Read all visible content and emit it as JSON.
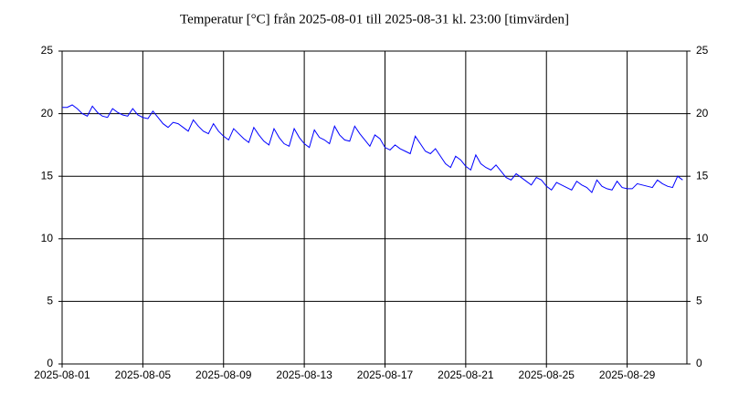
{
  "chart_data": {
    "type": "line",
    "title": "Temperatur [°C] från 2025-08-01 till 2025-08-31 kl. 23:00 [timvärden]",
    "x": [
      0,
      0.25,
      0.5,
      0.75,
      1,
      1.25,
      1.5,
      1.75,
      2,
      2.25,
      2.5,
      2.75,
      3,
      3.25,
      3.5,
      3.75,
      4,
      4.25,
      4.5,
      4.75,
      5,
      5.25,
      5.5,
      5.75,
      6,
      6.25,
      6.5,
      6.75,
      7,
      7.25,
      7.5,
      7.75,
      8,
      8.25,
      8.5,
      8.75,
      9,
      9.25,
      9.5,
      9.75,
      10,
      10.25,
      10.5,
      10.75,
      11,
      11.25,
      11.5,
      11.75,
      12,
      12.25,
      12.5,
      12.75,
      13,
      13.25,
      13.5,
      13.75,
      14,
      14.25,
      14.5,
      14.75,
      15,
      15.25,
      15.5,
      15.75,
      16,
      16.25,
      16.5,
      16.75,
      17,
      17.25,
      17.5,
      17.75,
      18,
      18.25,
      18.5,
      18.75,
      19,
      19.25,
      19.5,
      19.75,
      20,
      20.25,
      20.5,
      20.75,
      21,
      21.25,
      21.5,
      21.75,
      22,
      22.25,
      22.5,
      22.75,
      23,
      23.25,
      23.5,
      23.75,
      24,
      24.25,
      24.5,
      24.75,
      25,
      25.25,
      25.5,
      25.75,
      26,
      26.25,
      26.5,
      26.75,
      27,
      27.25,
      27.5,
      27.75,
      28,
      28.25,
      28.5,
      28.75,
      29,
      29.25,
      29.5,
      29.75,
      30,
      30.25,
      30.5,
      30.75
    ],
    "series": [
      {
        "name": "Temperatur",
        "color": "#0000ff",
        "values": [
          20.5,
          20.5,
          20.7,
          20.4,
          20.0,
          19.8,
          20.6,
          20.1,
          19.8,
          19.7,
          20.4,
          20.1,
          19.9,
          19.8,
          20.4,
          19.9,
          19.7,
          19.6,
          20.2,
          19.7,
          19.2,
          18.9,
          19.3,
          19.2,
          18.9,
          18.6,
          19.5,
          19.0,
          18.6,
          18.4,
          19.2,
          18.6,
          18.2,
          17.9,
          18.8,
          18.4,
          18.0,
          17.7,
          18.9,
          18.3,
          17.8,
          17.5,
          18.8,
          18.1,
          17.6,
          17.4,
          18.8,
          18.1,
          17.6,
          17.3,
          18.7,
          18.1,
          17.9,
          17.6,
          19.0,
          18.3,
          17.9,
          17.8,
          19.0,
          18.4,
          17.9,
          17.4,
          18.3,
          18.0,
          17.3,
          17.1,
          17.5,
          17.2,
          17.0,
          16.8,
          18.2,
          17.6,
          17.0,
          16.8,
          17.2,
          16.6,
          16.0,
          15.7,
          16.6,
          16.3,
          15.8,
          15.5,
          16.7,
          16.0,
          15.7,
          15.5,
          15.9,
          15.4,
          14.9,
          14.7,
          15.2,
          14.9,
          14.6,
          14.3,
          14.9,
          14.7,
          14.2,
          13.9,
          14.5,
          14.3,
          14.1,
          13.9,
          14.6,
          14.3,
          14.1,
          13.7,
          14.7,
          14.2,
          14.0,
          13.9,
          14.6,
          14.1,
          14.0,
          14.0,
          14.4,
          14.3,
          14.2,
          14.1,
          14.7,
          14.4,
          14.2,
          14.1,
          15.0,
          14.7
        ]
      }
    ],
    "xlim": [
      0,
      30.96
    ],
    "xticks": [
      {
        "value": 0,
        "label": "2025-08-01"
      },
      {
        "value": 4,
        "label": "2025-08-05"
      },
      {
        "value": 8,
        "label": "2025-08-09"
      },
      {
        "value": 12,
        "label": "2025-08-13"
      },
      {
        "value": 16,
        "label": "2025-08-17"
      },
      {
        "value": 20,
        "label": "2025-08-21"
      },
      {
        "value": 24,
        "label": "2025-08-25"
      },
      {
        "value": 28,
        "label": "2025-08-29"
      }
    ],
    "ylim": [
      0,
      25
    ],
    "yticks": [
      0,
      5,
      10,
      15,
      20,
      25
    ],
    "y2lim": [
      0,
      25
    ],
    "y2ticks": [
      0,
      5,
      10,
      15,
      20,
      25
    ],
    "grid": true
  }
}
